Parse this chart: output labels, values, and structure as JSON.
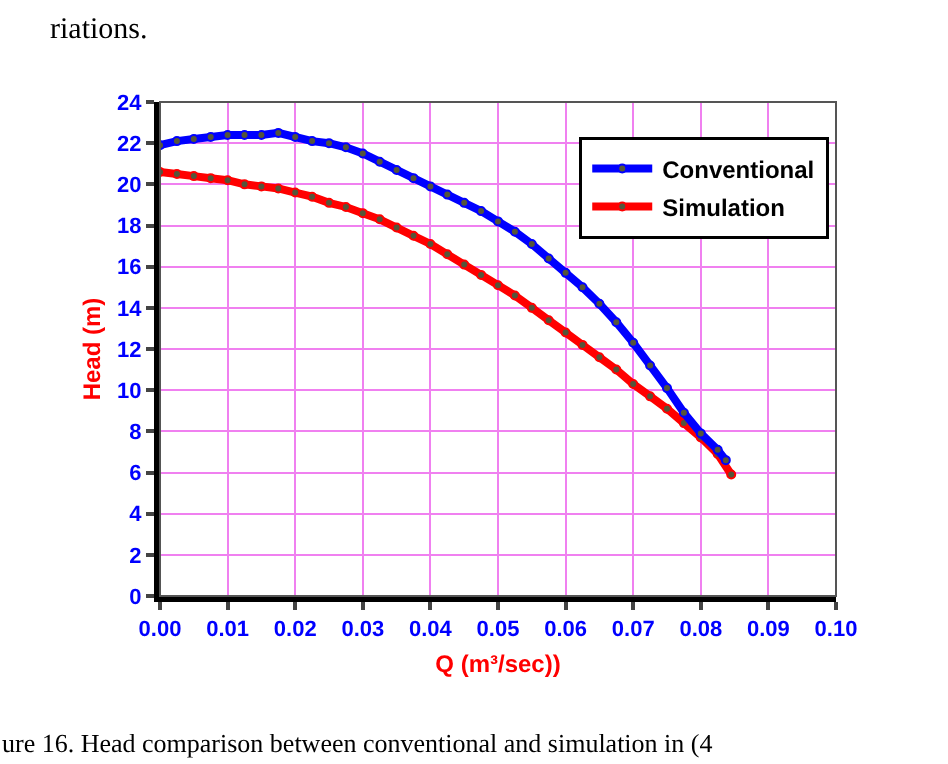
{
  "chart_data": {
    "type": "line",
    "xlabel": "Q (m³/sec))",
    "ylabel": "Head (m)",
    "annotations": [
      "riations.",
      "ure 16. Head comparison between conventional and simulation in (4"
    ],
    "xlim": [
      0,
      0.1
    ],
    "xticks": [
      {
        "value": 0,
        "label": "0.00"
      },
      0.01,
      0.02,
      0.03,
      0.04,
      0.05,
      0.06,
      0.07,
      0.08,
      0.09,
      {
        "value": 0.1,
        "label": "0.10"
      }
    ],
    "ylim": [
      0,
      24
    ],
    "yticks": [
      0,
      2,
      4,
      6,
      8,
      10,
      12,
      14,
      16,
      18,
      20,
      22,
      24
    ],
    "grid": true,
    "legend": "top right",
    "marker": "circle",
    "line_style": "solid",
    "series": [
      {
        "name": "Conventional",
        "color": "#0000ff",
        "x": [
          0,
          0.0025,
          0.005,
          0.0075,
          0.01,
          0.0125,
          0.015,
          0.0175,
          0.02,
          0.0225,
          0.025,
          0.0275,
          0.03,
          0.0325,
          0.035,
          0.0375,
          0.04,
          0.0425,
          0.045,
          0.0475,
          0.05,
          0.0525,
          0.055,
          0.0575,
          0.06,
          0.0625,
          0.065,
          0.0675,
          0.07,
          0.0725,
          0.075,
          0.0775,
          0.08,
          0.0825,
          0.0837
        ],
        "values": [
          21.9,
          22.1,
          22.2,
          22.3,
          22.4,
          22.4,
          22.4,
          22.5,
          22.3,
          22.1,
          22.0,
          21.8,
          21.5,
          21.1,
          20.7,
          20.3,
          19.9,
          19.5,
          19.1,
          18.7,
          18.2,
          17.7,
          17.1,
          16.4,
          15.7,
          15.0,
          14.2,
          13.3,
          12.3,
          11.2,
          10.1,
          8.9,
          7.9,
          7.1,
          6.6
        ]
      },
      {
        "name": "Simulation",
        "color": "#ff0000",
        "x": [
          0,
          0.0025,
          0.005,
          0.0075,
          0.01,
          0.0125,
          0.015,
          0.0175,
          0.02,
          0.0225,
          0.025,
          0.0275,
          0.03,
          0.0325,
          0.035,
          0.0375,
          0.04,
          0.0425,
          0.045,
          0.0475,
          0.05,
          0.0525,
          0.055,
          0.0575,
          0.06,
          0.0625,
          0.065,
          0.0675,
          0.07,
          0.0725,
          0.075,
          0.0775,
          0.08,
          0.0825,
          0.0845
        ],
        "values": [
          20.6,
          20.5,
          20.4,
          20.3,
          20.2,
          20.0,
          19.9,
          19.8,
          19.6,
          19.4,
          19.1,
          18.9,
          18.6,
          18.3,
          17.9,
          17.5,
          17.1,
          16.6,
          16.1,
          15.6,
          15.1,
          14.6,
          14.0,
          13.4,
          12.8,
          12.2,
          11.6,
          11.0,
          10.3,
          9.7,
          9.1,
          8.4,
          7.7,
          6.9,
          5.9
        ]
      }
    ]
  }
}
